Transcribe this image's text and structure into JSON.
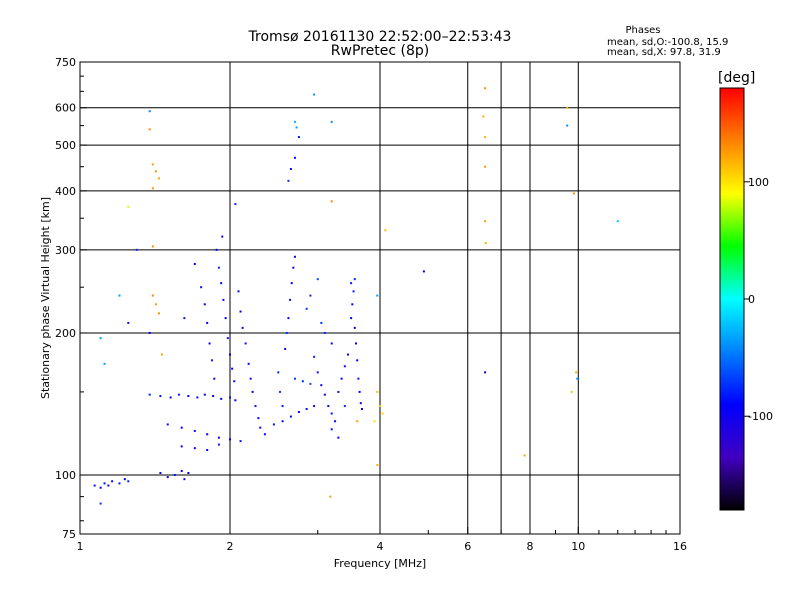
{
  "chart_data": {
    "type": "scatter",
    "title": "Tromsø 20161130 22:52:00–22:53:43",
    "subtitle": "RwPretec (8p)",
    "xlabel": "Frequency [MHz]",
    "ylabel": "Stationary phase Virtual Height [km]",
    "x_scale": "log",
    "y_scale": "log",
    "xlim": [
      1,
      16
    ],
    "ylim": [
      75,
      750
    ],
    "x_ticks": [
      1,
      2,
      4,
      6,
      8,
      10,
      16
    ],
    "x_tick_labels": [
      "1",
      "2",
      "4",
      "6",
      "8",
      "10",
      "16"
    ],
    "x_gridlines": [
      2,
      4,
      6,
      7,
      8,
      10
    ],
    "y_ticks": [
      75,
      100,
      200,
      300,
      400,
      500,
      600,
      750
    ],
    "y_tick_labels": [
      "75",
      "100",
      "200",
      "300",
      "400",
      "500",
      "600",
      "750"
    ],
    "grid": true,
    "legend": {
      "title": "Phases",
      "lines": [
        "mean, sd,O:-100.8, 15.9",
        "mean, sd,X:  97.8, 31.9"
      ]
    },
    "colorbar": {
      "label": "[deg]",
      "range": [
        -180,
        180
      ],
      "ticks": [
        100,
        0,
        -100
      ],
      "tick_labels": [
        "100",
        "0",
        "-100"
      ],
      "colors": [
        "#ff0000",
        "#ff8000",
        "#ffff00",
        "#00ff00",
        "#00ffff",
        "#0080ff",
        "#0000ff",
        "#4000c0",
        "#000000"
      ]
    },
    "series": [
      {
        "name": "O",
        "color_hint": "#2a2ae0",
        "points": [
          [
            1.07,
            95,
            -95
          ],
          [
            1.1,
            94,
            -100
          ],
          [
            1.12,
            96,
            -95
          ],
          [
            1.14,
            95,
            -105
          ],
          [
            1.16,
            97,
            -100
          ],
          [
            1.2,
            96,
            -95
          ],
          [
            1.23,
            98,
            -100
          ],
          [
            1.25,
            97,
            -90
          ],
          [
            1.1,
            87,
            -85
          ],
          [
            1.45,
            101,
            -105
          ],
          [
            1.5,
            99,
            -100
          ],
          [
            1.55,
            100,
            -95
          ],
          [
            1.6,
            102,
            -100
          ],
          [
            1.62,
            98,
            -110
          ],
          [
            1.65,
            101,
            -100
          ],
          [
            1.38,
            148,
            -90
          ],
          [
            1.45,
            147,
            -95
          ],
          [
            1.52,
            146,
            -100
          ],
          [
            1.58,
            148,
            -90
          ],
          [
            1.65,
            147,
            -100
          ],
          [
            1.72,
            146,
            -95
          ],
          [
            1.78,
            148,
            -100
          ],
          [
            1.85,
            147,
            -105
          ],
          [
            1.92,
            145,
            -100
          ],
          [
            2.0,
            146,
            -95
          ],
          [
            2.05,
            144,
            -100
          ],
          [
            1.5,
            128,
            -110
          ],
          [
            1.6,
            126,
            -100
          ],
          [
            1.7,
            124,
            -95
          ],
          [
            1.8,
            122,
            -100
          ],
          [
            1.9,
            120,
            -105
          ],
          [
            2.0,
            119,
            -100
          ],
          [
            2.1,
            118,
            -95
          ],
          [
            1.6,
            115,
            -110
          ],
          [
            1.7,
            114,
            -105
          ],
          [
            1.8,
            113,
            -100
          ],
          [
            1.9,
            116,
            -95
          ],
          [
            1.75,
            250,
            -95
          ],
          [
            1.78,
            230,
            -100
          ],
          [
            1.8,
            210,
            -105
          ],
          [
            1.82,
            190,
            -100
          ],
          [
            1.84,
            175,
            -95
          ],
          [
            1.86,
            160,
            -100
          ],
          [
            1.9,
            275,
            -90
          ],
          [
            1.92,
            255,
            -100
          ],
          [
            1.94,
            235,
            -105
          ],
          [
            1.96,
            215,
            -100
          ],
          [
            1.98,
            195,
            -95
          ],
          [
            2.0,
            180,
            -100
          ],
          [
            2.02,
            168,
            -105
          ],
          [
            2.04,
            158,
            -95
          ],
          [
            1.88,
            300,
            -100
          ],
          [
            1.93,
            320,
            -105
          ],
          [
            2.05,
            375,
            -90
          ],
          [
            2.08,
            245,
            -100
          ],
          [
            2.1,
            222,
            -105
          ],
          [
            2.12,
            205,
            -100
          ],
          [
            2.15,
            190,
            -95
          ],
          [
            2.18,
            172,
            -100
          ],
          [
            2.2,
            160,
            -105
          ],
          [
            2.22,
            150,
            -100
          ],
          [
            2.25,
            140,
            -95
          ],
          [
            2.28,
            132,
            -100
          ],
          [
            2.3,
            126,
            -105
          ],
          [
            2.35,
            122,
            -100
          ],
          [
            2.45,
            128,
            -95
          ],
          [
            2.55,
            130,
            -100
          ],
          [
            2.65,
            133,
            -100
          ],
          [
            2.75,
            136,
            -105
          ],
          [
            2.85,
            138,
            -95
          ],
          [
            2.95,
            140,
            -100
          ],
          [
            2.5,
            165,
            -90
          ],
          [
            2.52,
            150,
            -85
          ],
          [
            2.55,
            140,
            -95
          ],
          [
            2.58,
            185,
            -100
          ],
          [
            2.6,
            200,
            -90
          ],
          [
            2.62,
            215,
            -100
          ],
          [
            2.64,
            235,
            -95
          ],
          [
            2.66,
            255,
            -100
          ],
          [
            2.68,
            275,
            -105
          ],
          [
            2.7,
            290,
            -100
          ],
          [
            2.62,
            420,
            -90
          ],
          [
            2.65,
            445,
            -95
          ],
          [
            2.7,
            470,
            -100
          ],
          [
            2.75,
            520,
            -95
          ],
          [
            2.7,
            160,
            -85
          ],
          [
            2.8,
            158,
            -90
          ],
          [
            2.9,
            156,
            -80
          ],
          [
            2.95,
            178,
            -90
          ],
          [
            3.0,
            165,
            -95
          ],
          [
            3.05,
            155,
            -100
          ],
          [
            3.1,
            148,
            -105
          ],
          [
            3.15,
            140,
            -100
          ],
          [
            3.2,
            135,
            -95
          ],
          [
            3.25,
            130,
            -100
          ],
          [
            3.3,
            150,
            -105
          ],
          [
            3.35,
            160,
            -100
          ],
          [
            3.4,
            170,
            -95
          ],
          [
            3.45,
            180,
            -100
          ],
          [
            3.5,
            215,
            -105
          ],
          [
            3.52,
            230,
            -100
          ],
          [
            3.54,
            245,
            -95
          ],
          [
            3.56,
            205,
            -100
          ],
          [
            3.58,
            190,
            -105
          ],
          [
            3.6,
            175,
            -100
          ],
          [
            3.62,
            160,
            -95
          ],
          [
            3.64,
            150,
            -100
          ],
          [
            3.66,
            142,
            -105
          ],
          [
            3.68,
            138,
            -100
          ],
          [
            3.4,
            140,
            -90
          ],
          [
            3.3,
            120,
            -100
          ],
          [
            3.2,
            125,
            -95
          ],
          [
            1.2,
            240,
            -80
          ],
          [
            1.25,
            210,
            -95
          ],
          [
            1.38,
            200,
            -100
          ],
          [
            1.62,
            215,
            -95
          ],
          [
            1.7,
            280,
            -100
          ],
          [
            3.05,
            210,
            -85
          ],
          [
            3.1,
            200,
            -90
          ],
          [
            3.0,
            260,
            -80
          ],
          [
            3.2,
            190,
            -100
          ],
          [
            2.9,
            240,
            -90
          ],
          [
            2.85,
            225,
            -85
          ],
          [
            3.5,
            255,
            -95
          ],
          [
            3.56,
            260,
            -90
          ],
          [
            1.3,
            300,
            -90
          ]
        ]
      },
      {
        "name": "X",
        "color_hint": "#ff8c00",
        "points": [
          [
            1.38,
            540,
            120
          ],
          [
            1.4,
            455,
            115
          ],
          [
            1.42,
            440,
            120
          ],
          [
            1.44,
            425,
            110
          ],
          [
            1.4,
            405,
            115
          ],
          [
            1.4,
            305,
            120
          ],
          [
            1.4,
            240,
            125
          ],
          [
            1.42,
            230,
            115
          ],
          [
            1.44,
            220,
            120
          ],
          [
            1.46,
            180,
            110
          ],
          [
            1.25,
            370,
            60
          ],
          [
            3.2,
            380,
            120
          ],
          [
            3.18,
            90,
            115
          ],
          [
            3.95,
            105,
            105
          ],
          [
            3.95,
            150,
            100
          ],
          [
            4.0,
            140,
            95
          ],
          [
            4.05,
            135,
            90
          ],
          [
            3.9,
            130,
            85
          ],
          [
            4.1,
            330,
            100
          ],
          [
            3.6,
            130,
            110
          ],
          [
            6.5,
            660,
            115
          ],
          [
            6.45,
            575,
            110
          ],
          [
            6.5,
            520,
            105
          ],
          [
            6.5,
            450,
            115
          ],
          [
            6.5,
            345,
            110
          ],
          [
            6.52,
            310,
            105
          ],
          [
            7.8,
            110,
            110
          ],
          [
            9.5,
            600,
            105
          ],
          [
            9.8,
            395,
            120
          ],
          [
            9.9,
            165,
            105
          ],
          [
            9.7,
            150,
            95
          ]
        ]
      },
      {
        "name": "O-high",
        "color_hint": "#00c0ff",
        "points": [
          [
            1.38,
            590,
            -60
          ],
          [
            1.1,
            195,
            -55
          ],
          [
            1.12,
            172,
            -55
          ],
          [
            1.2,
            240,
            -50
          ],
          [
            2.95,
            640,
            -60
          ],
          [
            2.7,
            560,
            -50
          ],
          [
            2.72,
            545,
            -55
          ],
          [
            3.2,
            560,
            -60
          ],
          [
            3.95,
            240,
            -55
          ],
          [
            4.9,
            270,
            -100
          ],
          [
            6.5,
            165,
            -110
          ],
          [
            9.5,
            550,
            -60
          ],
          [
            9.95,
            160,
            -55
          ],
          [
            12.0,
            345,
            -45
          ]
        ]
      }
    ]
  }
}
